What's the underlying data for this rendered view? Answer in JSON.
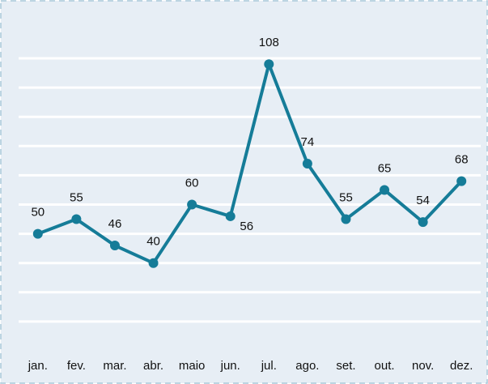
{
  "chart_data": {
    "type": "line",
    "categories": [
      "jan.",
      "fev.",
      "mar.",
      "abr.",
      "maio",
      "jun.",
      "jul.",
      "ago.",
      "set.",
      "out.",
      "nov.",
      "dez."
    ],
    "values": [
      50,
      55,
      46,
      40,
      60,
      56,
      108,
      74,
      55,
      65,
      54,
      68
    ],
    "color": "#157c98",
    "ylim": [
      10,
      110
    ],
    "yticks": [
      20,
      30,
      40,
      50,
      60,
      70,
      80,
      90,
      100,
      110
    ],
    "grid": true
  }
}
